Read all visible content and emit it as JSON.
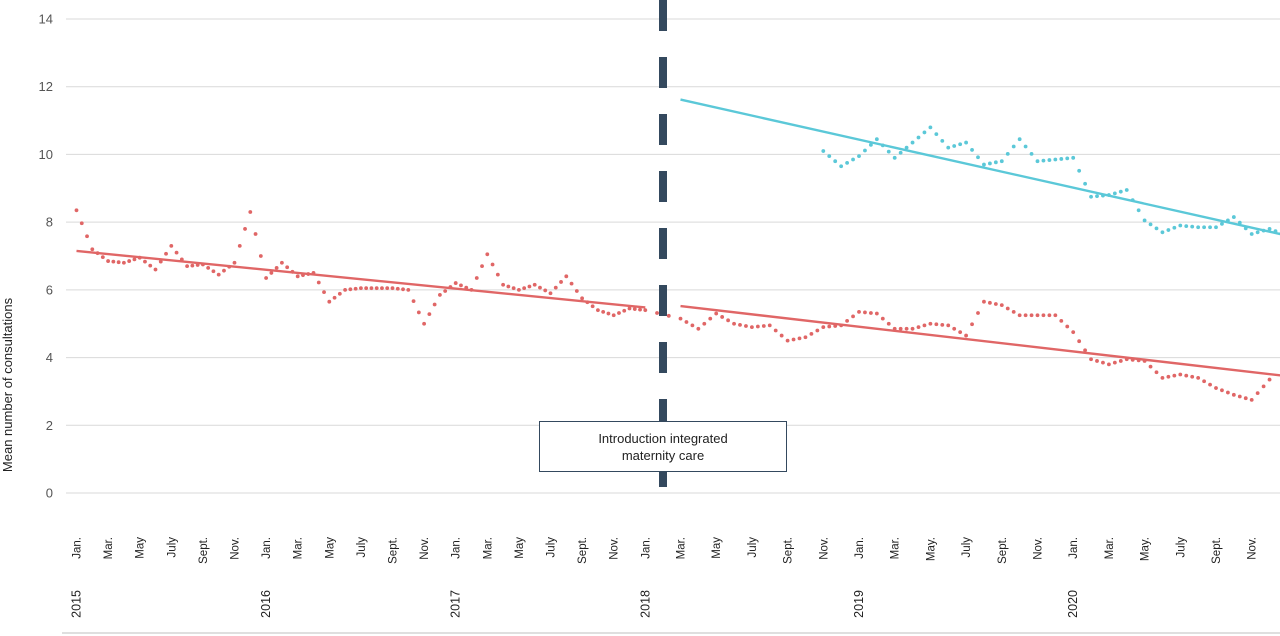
{
  "chart_data": {
    "type": "line",
    "title": "",
    "ylabel": "Mean number of consultations",
    "ylim": [
      0,
      14
    ],
    "yticks": [
      0,
      2,
      4,
      6,
      8,
      10,
      12,
      14
    ],
    "grid": true,
    "legend": "none",
    "annotation": "Introduction integrated maternity care",
    "colors": {
      "red": "#e06666",
      "cyan": "#5bc8d8",
      "divider": "#34495e",
      "grid": "#d9d9d9"
    },
    "month_ticks": [
      "Jan.",
      "Mar.",
      "May",
      "July",
      "Sept.",
      "Nov.",
      "Jan.",
      "Mar.",
      "May",
      "July",
      "Sept.",
      "Nov.",
      "Jan.",
      "Mar.",
      "May",
      "July",
      "Sept.",
      "Nov.",
      "Jan.",
      "Mar.",
      "May",
      "July",
      "Sept.",
      "Nov.",
      "Jan.",
      "Mar.",
      "May.",
      "July",
      "Sept.",
      "Nov.",
      "Jan.",
      "Mar.",
      "May.",
      "July",
      "Sept.",
      "Nov."
    ],
    "year_ticks": [
      "2015",
      "2016",
      "2017",
      "2018",
      "2019",
      "2020"
    ],
    "intervention_month": 37,
    "series": [
      {
        "x_start": 1,
        "values": [
          8.35,
          7.2,
          6.85,
          6.8,
          6.95,
          6.6,
          7.3,
          6.7,
          6.75,
          6.45,
          6.8,
          8.3,
          6.35,
          6.8,
          6.4,
          6.5,
          5.65,
          6.0,
          6.05,
          6.05,
          6.05,
          6.0,
          5.0,
          5.85,
          6.2,
          6.0,
          7.05,
          6.15,
          6.0,
          6.15,
          5.9,
          6.4,
          5.75,
          5.4,
          5.25,
          5.45,
          5.4,
          5.15,
          4.85,
          5.3,
          5.0,
          4.9,
          4.95,
          4.5,
          4.6,
          4.9,
          4.95,
          5.35,
          5.3,
          4.85,
          4.85,
          5.0,
          4.95,
          4.65,
          5.65,
          5.55,
          5.25,
          5.25,
          5.25,
          4.75,
          3.95,
          3.8,
          3.95,
          3.9,
          3.4,
          3.5,
          3.4,
          3.1,
          2.9,
          2.75,
          3.35
        ]
      },
      {
        "x_start": 46,
        "values": [
          10.1,
          9.65,
          9.95,
          10.45,
          9.9,
          10.35,
          10.8,
          10.2,
          10.35,
          9.7,
          9.8,
          10.45,
          9.8,
          9.85,
          9.9,
          8.75,
          8.8,
          8.95,
          8.05,
          7.7,
          7.9,
          7.85,
          7.85,
          8.15,
          7.65,
          7.8,
          7.6
        ]
      }
    ],
    "trends": [
      {
        "series": 0,
        "x": [
          1,
          37
        ],
        "y": [
          7.15,
          5.48
        ]
      },
      {
        "series": 0,
        "x": [
          38,
          72
        ],
        "y": [
          5.52,
          3.45
        ]
      },
      {
        "series": 1,
        "x": [
          38,
          72
        ],
        "y": [
          11.62,
          7.6
        ]
      }
    ]
  }
}
